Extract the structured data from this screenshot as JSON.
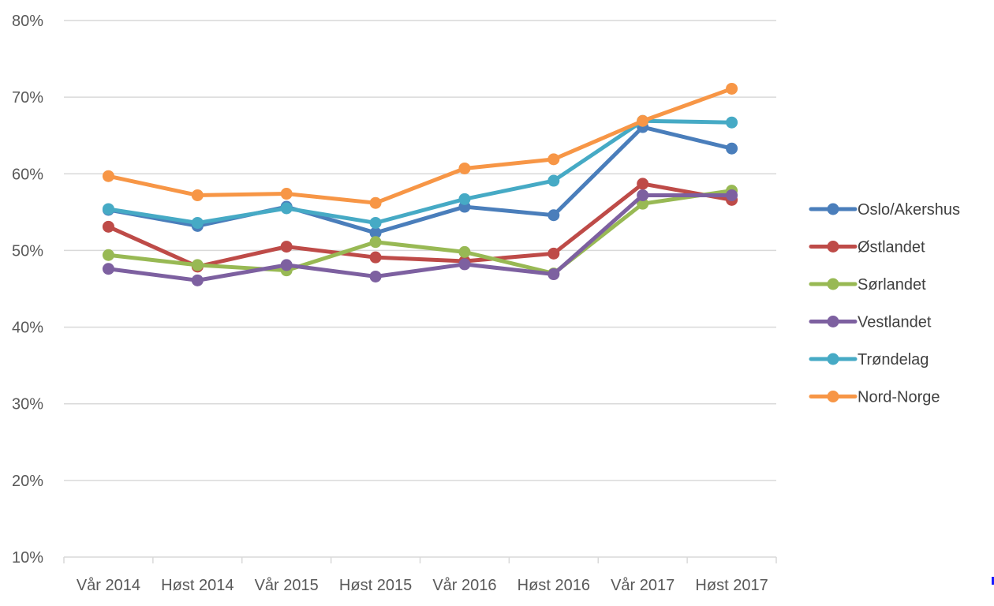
{
  "chart_data": {
    "type": "line",
    "title": "",
    "xlabel": "",
    "ylabel": "",
    "ylim": [
      10,
      80
    ],
    "yticks": [
      "10%",
      "20%",
      "30%",
      "40%",
      "50%",
      "60%",
      "70%",
      "80%"
    ],
    "ytick_values": [
      10,
      20,
      30,
      40,
      50,
      60,
      70,
      80
    ],
    "grid": true,
    "legend_position": "right",
    "categories": [
      "Vår 2014",
      "Høst 2014",
      "Vår 2015",
      "Høst 2015",
      "Vår 2016",
      "Høst 2016",
      "Vår 2017",
      "Høst 2017"
    ],
    "series": [
      {
        "name": "Oslo/Akershus",
        "color": "#4a7ebb",
        "values": [
          55.3,
          53.2,
          55.7,
          52.3,
          55.7,
          54.6,
          66.1,
          63.3
        ]
      },
      {
        "name": "Østlandet",
        "color": "#be4b48",
        "values": [
          53.1,
          47.9,
          50.5,
          49.1,
          48.6,
          49.6,
          58.7,
          56.6
        ]
      },
      {
        "name": "Sørlandet",
        "color": "#98b954",
        "values": [
          49.4,
          48.1,
          47.4,
          51.1,
          49.8,
          47.0,
          56.1,
          57.8
        ]
      },
      {
        "name": "Vestlandet",
        "color": "#7d60a0",
        "values": [
          47.6,
          46.1,
          48.1,
          46.6,
          48.2,
          46.9,
          57.2,
          57.2
        ]
      },
      {
        "name": "Trøndelag",
        "color": "#46aac5",
        "values": [
          55.4,
          53.6,
          55.5,
          53.6,
          56.7,
          59.1,
          66.9,
          66.7
        ]
      },
      {
        "name": "Nord-Norge",
        "color": "#f79646",
        "values": [
          59.7,
          57.2,
          57.4,
          56.2,
          60.7,
          61.9,
          66.9,
          71.1
        ]
      }
    ]
  }
}
